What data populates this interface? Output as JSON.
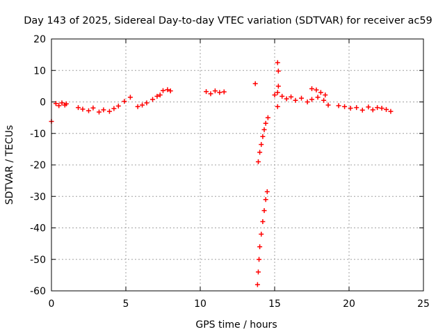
{
  "chart_data": {
    "type": "scatter",
    "title": "Day 143 of 2025, Sidereal Day-to-day VTEC variation (SDTVAR) for receiver ac59",
    "xlabel": "GPS time / hours",
    "ylabel": "SDTVAR / TECUs",
    "xlim": [
      0,
      25
    ],
    "ylim": [
      -60,
      20
    ],
    "xticks": [
      0,
      5,
      10,
      15,
      20,
      25
    ],
    "yticks": [
      -60,
      -50,
      -40,
      -30,
      -20,
      -10,
      0,
      10,
      20
    ],
    "grid": true,
    "marker": "+",
    "colors": {
      "series": "#ff0000",
      "grid": "#a0a0a0",
      "axis": "#000000"
    },
    "series": [
      {
        "name": "SDTVAR",
        "points": [
          [
            0.0,
            -6.2
          ],
          [
            0.3,
            -0.5
          ],
          [
            0.5,
            -1.2
          ],
          [
            0.7,
            -0.3
          ],
          [
            0.9,
            -1.0
          ],
          [
            1.0,
            -0.6
          ],
          [
            1.8,
            -1.8
          ],
          [
            2.1,
            -2.3
          ],
          [
            2.5,
            -2.8
          ],
          [
            2.8,
            -1.9
          ],
          [
            3.2,
            -3.2
          ],
          [
            3.5,
            -2.5
          ],
          [
            3.9,
            -3.0
          ],
          [
            4.2,
            -2.1
          ],
          [
            4.5,
            -1.3
          ],
          [
            4.9,
            0.2
          ],
          [
            5.3,
            1.5
          ],
          [
            5.8,
            -1.5
          ],
          [
            6.1,
            -1.0
          ],
          [
            6.4,
            -0.3
          ],
          [
            6.8,
            0.8
          ],
          [
            7.1,
            1.8
          ],
          [
            7.3,
            2.2
          ],
          [
            7.5,
            3.6
          ],
          [
            7.8,
            3.9
          ],
          [
            8.0,
            3.5
          ],
          [
            10.4,
            3.3
          ],
          [
            10.7,
            2.6
          ],
          [
            11.0,
            3.5
          ],
          [
            11.3,
            3.0
          ],
          [
            11.6,
            3.2
          ],
          [
            13.7,
            5.8
          ],
          [
            13.9,
            -19.0
          ],
          [
            14.0,
            -16.0
          ],
          [
            14.1,
            -13.5
          ],
          [
            14.2,
            -11.0
          ],
          [
            14.3,
            -8.8
          ],
          [
            14.4,
            -6.8
          ],
          [
            14.55,
            -5.0
          ],
          [
            13.85,
            -58.0
          ],
          [
            13.9,
            -54.0
          ],
          [
            13.95,
            -50.0
          ],
          [
            14.0,
            -46.0
          ],
          [
            14.1,
            -42.0
          ],
          [
            14.2,
            -38.0
          ],
          [
            14.3,
            -34.5
          ],
          [
            14.4,
            -31.0
          ],
          [
            14.5,
            -28.5
          ],
          [
            15.0,
            2.2
          ],
          [
            15.2,
            3.0
          ],
          [
            15.2,
            12.5
          ],
          [
            15.25,
            9.8
          ],
          [
            15.25,
            5.0
          ],
          [
            15.2,
            -1.5
          ],
          [
            15.5,
            1.8
          ],
          [
            15.8,
            1.0
          ],
          [
            16.1,
            1.6
          ],
          [
            16.4,
            0.5
          ],
          [
            16.8,
            1.2
          ],
          [
            17.2,
            0.0
          ],
          [
            17.5,
            0.8
          ],
          [
            17.9,
            1.5
          ],
          [
            18.3,
            0.5
          ],
          [
            18.6,
            -1.0
          ],
          [
            17.5,
            4.2
          ],
          [
            17.8,
            3.8
          ],
          [
            18.1,
            3.0
          ],
          [
            18.4,
            2.2
          ],
          [
            19.3,
            -1.2
          ],
          [
            19.7,
            -1.5
          ],
          [
            20.1,
            -2.0
          ],
          [
            20.5,
            -1.8
          ],
          [
            20.9,
            -2.6
          ],
          [
            21.3,
            -1.6
          ],
          [
            21.6,
            -2.5
          ],
          [
            21.9,
            -1.8
          ],
          [
            22.2,
            -2.0
          ],
          [
            22.5,
            -2.4
          ],
          [
            22.8,
            -3.0
          ]
        ]
      }
    ]
  }
}
